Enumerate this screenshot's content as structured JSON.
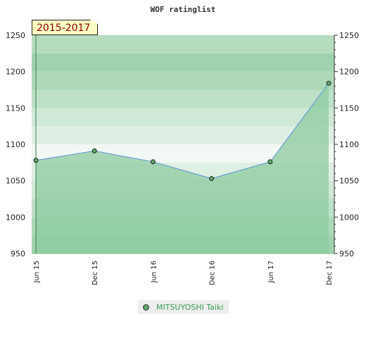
{
  "chart_data": {
    "type": "area",
    "title": "WOF ratinglist",
    "period_label": "2015-2017",
    "x": [
      "Jun 15",
      "Dec 15",
      "Jun 16",
      "Dec 16",
      "Jun 17",
      "Dec 17"
    ],
    "series": [
      {
        "name": "MITSUYOSHI Taiki",
        "values": [
          1078,
          1091,
          1076,
          1053,
          1076,
          1184
        ]
      }
    ],
    "ylim": [
      950,
      1250
    ],
    "yticks": [
      950,
      1000,
      1050,
      1100,
      1150,
      1200,
      1250
    ],
    "grid": true,
    "legend_position": "bottom-center",
    "colors": {
      "line": "#6a9fd4",
      "fill": "#8ecba0",
      "marker": "#5aa86a",
      "band_dark": "#9fd2ae",
      "band_light": "#cfe9d6"
    }
  }
}
